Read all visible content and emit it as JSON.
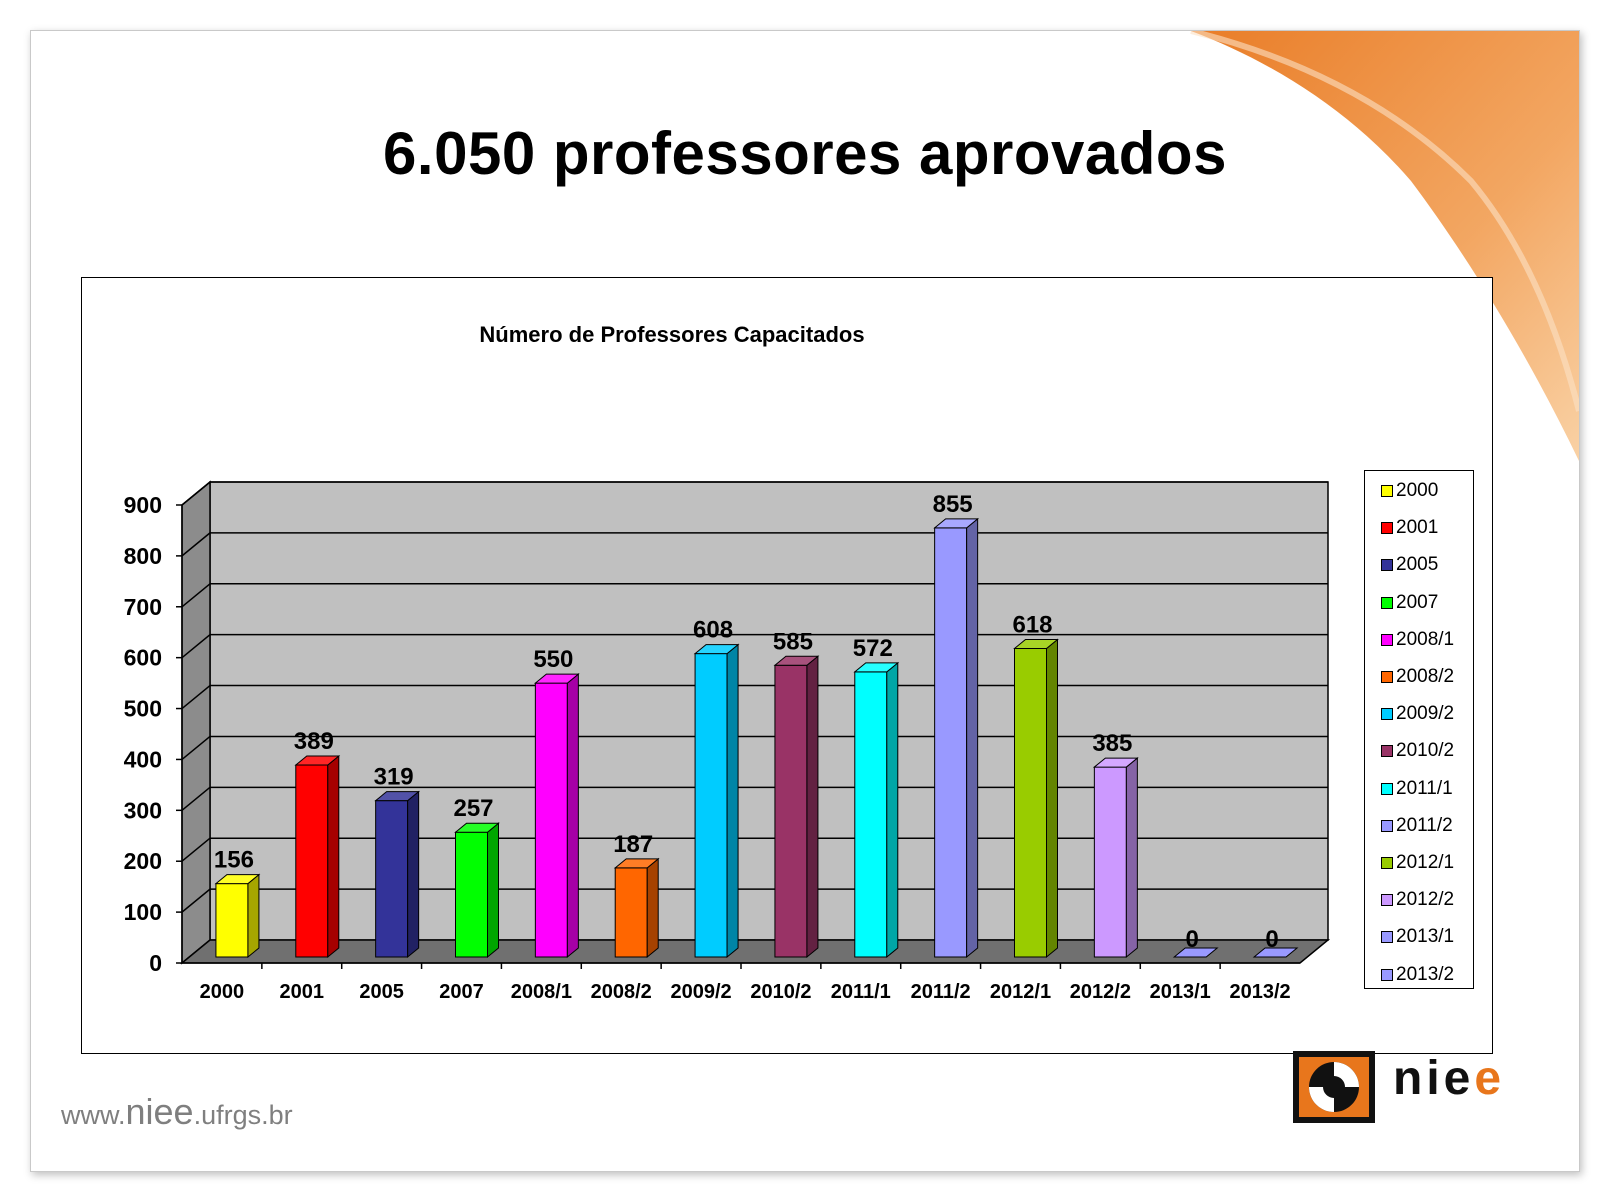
{
  "slide": {
    "title": "6.050 professores aprovados",
    "accent_color": "#e8761c"
  },
  "chart_data": {
    "type": "bar",
    "title": "Número de Professores Capacitados",
    "categories": [
      "2000",
      "2001",
      "2005",
      "2007",
      "2008/1",
      "2008/2",
      "2009/2",
      "2010/2",
      "2011/1",
      "2011/2",
      "2012/1",
      "2012/2",
      "2013/1",
      "2013/2"
    ],
    "values": [
      156,
      389,
      319,
      257,
      550,
      187,
      608,
      585,
      572,
      855,
      618,
      385,
      0,
      0
    ],
    "colors": [
      "#ffff00",
      "#ff0000",
      "#333399",
      "#00ff00",
      "#ff00ff",
      "#ff6600",
      "#00ccff",
      "#993366",
      "#00ffff",
      "#9999ff",
      "#99cc00",
      "#cc99ff",
      "#9999ff",
      "#9999ff"
    ],
    "yticks": [
      0,
      100,
      200,
      300,
      400,
      500,
      600,
      700,
      800,
      900
    ],
    "ylim": [
      0,
      900
    ],
    "xlabel": "",
    "ylabel": "",
    "grid": true,
    "legend": "right",
    "style": "3d-bar"
  },
  "footer": {
    "url_prefix": "www.",
    "url_brand": "niee",
    "url_suffix": ".ufrgs.br"
  },
  "logo": {
    "text_main": "nie",
    "text_accent": "e"
  }
}
